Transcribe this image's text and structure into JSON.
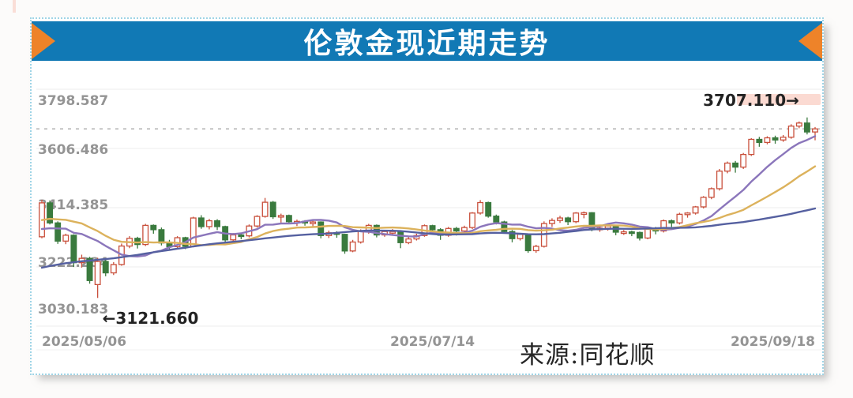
{
  "title": "伦敦金现近期走势",
  "source": "来源:同花顺",
  "colors": {
    "title_bar_blue": "#1179b5",
    "arrow_orange": "#ee8329",
    "up_candle_red": "#c9503c",
    "down_candle_green": "#3a7a3e",
    "ma10_purple": "#8b76bb",
    "ma20_yellow": "#dcb25c",
    "ma60_navy": "#5560a0"
  },
  "chart_data": {
    "type": "candlestick",
    "title": "伦敦金现近期走势",
    "y_ticks": [
      "3798.587",
      "3606.486",
      "3414.385",
      "3222.284",
      "3030.183"
    ],
    "y_tick_values": [
      3798.587,
      3606.486,
      3414.385,
      3222.284,
      3030.183
    ],
    "x_ticks": [
      {
        "label": "2025/05/06",
        "index": 0,
        "anchor": "start"
      },
      {
        "label": "2025/07/14",
        "index": 49,
        "anchor": "middle"
      },
      {
        "label": "2025/09/18",
        "index": 97,
        "anchor": "end"
      }
    ],
    "annotations": {
      "high": {
        "text": "3707.110→",
        "price": 3707.11,
        "index": 96
      },
      "low": {
        "text": "←3121.660",
        "price": 3121.66,
        "index": 7
      }
    },
    "grid": true,
    "legend": "none",
    "ma_lines": [
      {
        "window": 10,
        "color": "#8b76bb"
      },
      {
        "window": 20,
        "color": "#dcb25c"
      },
      {
        "window": 60,
        "color": "#5560a0"
      }
    ],
    "pre_history_closes": [
      3020,
      3032,
      3040,
      3052,
      3045,
      3048,
      3060,
      3070,
      3075,
      3085,
      3070,
      3082,
      3090,
      3095,
      3088,
      3060,
      3072,
      3078,
      3090,
      3130,
      3145,
      3168,
      3180,
      3162,
      3158,
      3185,
      3192,
      3215,
      3228,
      3240,
      3218,
      3210,
      3248,
      3268,
      3278,
      3255,
      3268,
      3178,
      3138,
      3180,
      3225,
      3282,
      3342,
      3358,
      3350,
      3365,
      3432,
      3482,
      3510,
      3485,
      3425,
      3342,
      3312,
      3332,
      3368,
      3288,
      3298,
      3348,
      3362,
      3372
    ],
    "candles": [
      [
        3320,
        3440,
        3315,
        3430
      ],
      [
        3430,
        3438,
        3360,
        3365
      ],
      [
        3365,
        3370,
        3297,
        3306
      ],
      [
        3306,
        3330,
        3296,
        3325
      ],
      [
        3325,
        3328,
        3222,
        3236
      ],
      [
        3236,
        3262,
        3220,
        3250
      ],
      [
        3250,
        3255,
        3168,
        3178
      ],
      [
        3165,
        3252,
        3121.66,
        3240
      ],
      [
        3240,
        3248,
        3192,
        3203
      ],
      [
        3203,
        3238,
        3196,
        3230
      ],
      [
        3230,
        3298,
        3226,
        3290
      ],
      [
        3290,
        3322,
        3283,
        3315
      ],
      [
        3315,
        3320,
        3282,
        3295
      ],
      [
        3295,
        3362,
        3290,
        3357
      ],
      [
        3357,
        3360,
        3330,
        3343
      ],
      [
        3343,
        3350,
        3292,
        3300
      ],
      [
        3300,
        3310,
        3278,
        3288
      ],
      [
        3288,
        3322,
        3282,
        3317
      ],
      [
        3317,
        3320,
        3280,
        3289
      ],
      [
        3289,
        3385,
        3286,
        3381
      ],
      [
        3381,
        3390,
        3346,
        3353
      ],
      [
        3353,
        3378,
        3344,
        3372
      ],
      [
        3372,
        3377,
        3342,
        3353
      ],
      [
        3353,
        3356,
        3302,
        3310
      ],
      [
        3310,
        3332,
        3305,
        3326
      ],
      [
        3326,
        3333,
        3312,
        3323
      ],
      [
        3323,
        3360,
        3318,
        3355
      ],
      [
        3355,
        3390,
        3350,
        3386
      ],
      [
        3386,
        3446,
        3382,
        3432
      ],
      [
        3432,
        3436,
        3378,
        3385
      ],
      [
        3385,
        3395,
        3366,
        3389
      ],
      [
        3389,
        3392,
        3362,
        3369
      ],
      [
        3369,
        3376,
        3355,
        3370
      ],
      [
        3370,
        3374,
        3356,
        3368
      ],
      [
        3368,
        3374,
        3350,
        3368
      ],
      [
        3368,
        3370,
        3315,
        3324
      ],
      [
        3324,
        3340,
        3316,
        3333
      ],
      [
        3333,
        3338,
        3317,
        3328
      ],
      [
        3328,
        3330,
        3265,
        3274
      ],
      [
        3274,
        3310,
        3270,
        3303
      ],
      [
        3303,
        3344,
        3298,
        3338
      ],
      [
        3338,
        3362,
        3330,
        3357
      ],
      [
        3357,
        3360,
        3318,
        3326
      ],
      [
        3326,
        3340,
        3320,
        3337
      ],
      [
        3337,
        3345,
        3326,
        3337
      ],
      [
        3337,
        3340,
        3283,
        3301
      ],
      [
        3301,
        3320,
        3296,
        3313
      ],
      [
        3313,
        3330,
        3308,
        3324
      ],
      [
        3324,
        3360,
        3320,
        3356
      ],
      [
        3356,
        3359,
        3338,
        3343
      ],
      [
        3343,
        3348,
        3310,
        3325
      ],
      [
        3325,
        3352,
        3320,
        3347
      ],
      [
        3347,
        3352,
        3324,
        3339
      ],
      [
        3339,
        3356,
        3334,
        3350
      ],
      [
        3350,
        3400,
        3345,
        3397
      ],
      [
        3397,
        3439,
        3392,
        3431
      ],
      [
        3431,
        3434,
        3382,
        3387
      ],
      [
        3387,
        3392,
        3360,
        3368
      ],
      [
        3368,
        3372,
        3330,
        3337
      ],
      [
        3337,
        3342,
        3302,
        3314
      ],
      [
        3314,
        3332,
        3308,
        3328
      ],
      [
        3328,
        3330,
        3268,
        3275
      ],
      [
        3275,
        3294,
        3268,
        3289
      ],
      [
        3289,
        3370,
        3285,
        3363
      ],
      [
        3363,
        3380,
        3352,
        3373
      ],
      [
        3373,
        3388,
        3365,
        3381
      ],
      [
        3381,
        3385,
        3358,
        3369
      ],
      [
        3369,
        3400,
        3364,
        3397
      ],
      [
        3397,
        3402,
        3380,
        3398
      ],
      [
        3398,
        3400,
        3338,
        3344
      ],
      [
        3344,
        3356,
        3336,
        3348
      ],
      [
        3348,
        3362,
        3340,
        3355
      ],
      [
        3355,
        3358,
        3325,
        3335
      ],
      [
        3335,
        3342,
        3326,
        3336
      ],
      [
        3336,
        3340,
        3322,
        3334
      ],
      [
        3334,
        3337,
        3308,
        3316
      ],
      [
        3316,
        3352,
        3312,
        3348
      ],
      [
        3348,
        3352,
        3328,
        3339
      ],
      [
        3339,
        3376,
        3334,
        3372
      ],
      [
        3372,
        3376,
        3352,
        3365
      ],
      [
        3365,
        3398,
        3360,
        3393
      ],
      [
        3393,
        3400,
        3382,
        3397
      ],
      [
        3397,
        3420,
        3392,
        3417
      ],
      [
        3417,
        3452,
        3412,
        3448
      ],
      [
        3448,
        3480,
        3442,
        3476
      ],
      [
        3476,
        3540,
        3470,
        3533
      ],
      [
        3533,
        3564,
        3526,
        3559
      ],
      [
        3559,
        3566,
        3528,
        3546
      ],
      [
        3546,
        3592,
        3540,
        3587
      ],
      [
        3587,
        3640,
        3582,
        3636
      ],
      [
        3636,
        3644,
        3612,
        3626
      ],
      [
        3626,
        3646,
        3620,
        3641
      ],
      [
        3641,
        3648,
        3622,
        3634
      ],
      [
        3634,
        3650,
        3628,
        3643
      ],
      [
        3643,
        3685,
        3638,
        3679
      ],
      [
        3679,
        3694,
        3672,
        3689
      ],
      [
        3689,
        3707.11,
        3652,
        3660
      ],
      [
        3660,
        3676,
        3633,
        3670
      ]
    ]
  }
}
